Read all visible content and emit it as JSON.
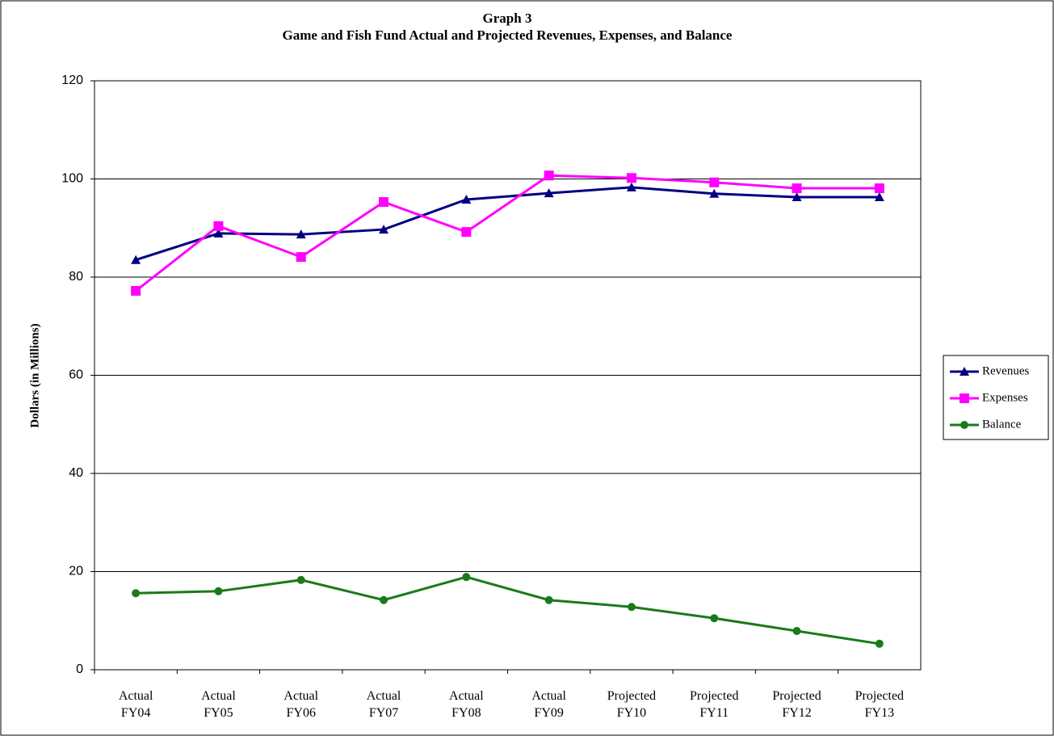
{
  "chart_data": {
    "type": "line",
    "title": "Graph 3",
    "subtitle": "Game and Fish Fund Actual and Projected Revenues, Expenses, and Balance",
    "y_label": "Dollars (in Millions)",
    "categories": [
      "Actual FY04",
      "Actual FY05",
      "Actual FY06",
      "Actual FY07",
      "Actual FY08",
      "Actual FY09",
      "Projected FY10",
      "Projected FY11",
      "Projected FY12",
      "Projected FY13"
    ],
    "series": [
      {
        "name": "Revenues",
        "color": "#000080",
        "marker": "triangle",
        "values": [
          83.5,
          88.9,
          88.7,
          89.7,
          95.8,
          97.1,
          98.3,
          97.0,
          96.3,
          96.3
        ]
      },
      {
        "name": "Expenses",
        "color": "#ff00ff",
        "marker": "square",
        "values": [
          77.2,
          90.4,
          84.1,
          95.3,
          89.2,
          100.7,
          100.2,
          99.3,
          98.1,
          98.1
        ]
      },
      {
        "name": "Balance",
        "color": "#1a7a1a",
        "marker": "circle",
        "values": [
          15.6,
          16.0,
          18.3,
          14.2,
          18.9,
          14.2,
          12.8,
          10.5,
          7.9,
          5.3
        ]
      }
    ],
    "ylim": [
      0,
      120
    ],
    "yticks": [
      0,
      20,
      40,
      60,
      80,
      100,
      120
    ],
    "grid": true,
    "legend": "right"
  }
}
